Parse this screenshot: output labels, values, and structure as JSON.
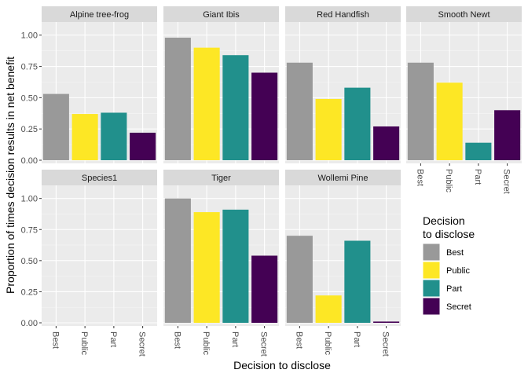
{
  "chart_data": {
    "type": "bar",
    "facet": true,
    "xlabel": "Decision to disclose",
    "ylabel": "Proportion of times decision results in net benefit",
    "ylim": [
      0,
      1.08
    ],
    "yticks": [
      "0.00",
      "0.25",
      "0.50",
      "0.75",
      "1.00"
    ],
    "ytick_values": [
      0,
      0.25,
      0.5,
      0.75,
      1.0
    ],
    "categories": [
      "Best",
      "Public",
      "Part",
      "Secret"
    ],
    "colors": [
      "#999999",
      "#FDE725",
      "#21908C",
      "#440154"
    ],
    "panel_background": "#EBEBEB",
    "strip_background": "#D9D9D9",
    "grid": true,
    "legend": {
      "title_line1": "Decision",
      "title_line2": "to disclose",
      "position": "right",
      "items": [
        "Best",
        "Public",
        "Part",
        "Secret"
      ]
    },
    "panels": [
      {
        "name": "Alpine tree-frog",
        "values": [
          0.53,
          0.37,
          0.38,
          0.22
        ]
      },
      {
        "name": "Giant Ibis",
        "values": [
          0.98,
          0.9,
          0.84,
          0.7
        ]
      },
      {
        "name": "Red Handfish",
        "values": [
          0.78,
          0.49,
          0.58,
          0.27
        ]
      },
      {
        "name": "Smooth Newt",
        "values": [
          0.78,
          0.62,
          0.14,
          0.4
        ]
      },
      {
        "name": "Species1",
        "values": [
          0,
          0,
          0,
          0
        ]
      },
      {
        "name": "Tiger",
        "values": [
          1.0,
          0.89,
          0.91,
          0.54
        ]
      },
      {
        "name": "Wollemi Pine",
        "values": [
          0.7,
          0.22,
          0.66,
          0.01
        ]
      }
    ]
  }
}
